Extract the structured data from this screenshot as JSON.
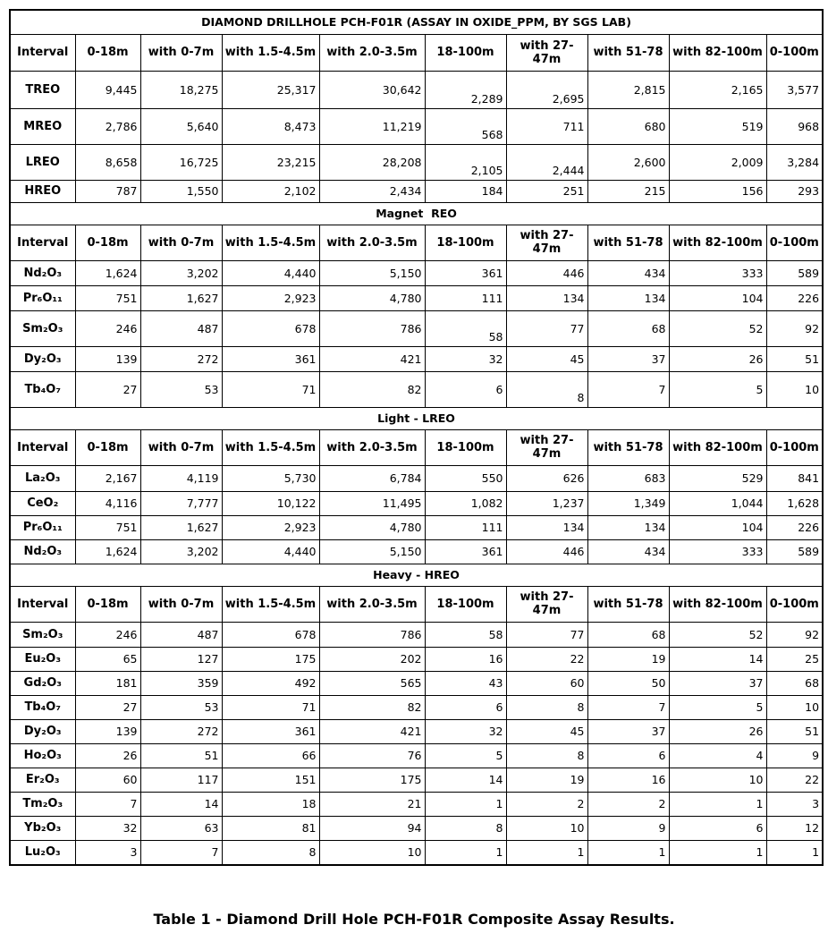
{
  "table": {
    "title": "DIAMOND DRILLHOLE PCH-F01R (ASSAY IN OXIDE_PPM, BY SGS LAB)",
    "blocks": [
      {
        "header": [
          "Interval",
          "0-18m",
          "with 0-7m",
          "with 1.5-4.5m",
          "with 2.0-3.5m",
          "18-100m",
          "with 27-47m",
          "with 51-78",
          "with 82-100m",
          "0-100m"
        ],
        "rows": [
          [
            "TREO",
            "9,445",
            "18,275",
            "25,317",
            "30,642",
            "2,289",
            "2,695",
            "2,815",
            "2,165",
            "3,577"
          ],
          [
            "MREO",
            "2,786",
            "5,640",
            "8,473",
            "11,219",
            "568",
            "711",
            "680",
            "519",
            "968"
          ],
          [
            "LREO",
            "8,658",
            "16,725",
            "23,215",
            "28,208",
            "2,105",
            "2,444",
            "2,600",
            "2,009",
            "3,284"
          ],
          [
            "HREO",
            "787",
            "1,550",
            "2,102",
            "2,434",
            "184",
            "251",
            "215",
            "156",
            "293"
          ]
        ]
      },
      {
        "section": "Magnet  REO",
        "header": [
          "Interval",
          "0-18m",
          "with 0-7m",
          "with 1.5-4.5m",
          "with 2.0-3.5m",
          "18-100m",
          "with 27-47m",
          "with 51-78",
          "with 82-100m",
          "0-100m"
        ],
        "rows": [
          [
            "Nd₂O₃",
            "1,624",
            "3,202",
            "4,440",
            "5,150",
            "361",
            "446",
            "434",
            "333",
            "589"
          ],
          [
            "Pr₆O₁₁",
            "751",
            "1,627",
            "2,923",
            "4,780",
            "111",
            "134",
            "134",
            "104",
            "226"
          ],
          [
            "Sm₂O₃",
            "246",
            "487",
            "678",
            "786",
            "58",
            "77",
            "68",
            "52",
            "92"
          ],
          [
            "Dy₂O₃",
            "139",
            "272",
            "361",
            "421",
            "32",
            "45",
            "37",
            "26",
            "51"
          ],
          [
            "Tb₄O₇",
            "27",
            "53",
            "71",
            "82",
            "6",
            "8",
            "7",
            "5",
            "10"
          ]
        ]
      },
      {
        "section": "Light - LREO",
        "header": [
          "Interval",
          "0-18m",
          "with 0-7m",
          "with 1.5-4.5m",
          "with 2.0-3.5m",
          "18-100m",
          "with 27-47m",
          "with 51-78",
          "with 82-100m",
          "0-100m"
        ],
        "rows": [
          [
            "La₂O₃",
            "2,167",
            "4,119",
            "5,730",
            "6,784",
            "550",
            "626",
            "683",
            "529",
            "841"
          ],
          [
            "CeO₂",
            "4,116",
            "7,777",
            "10,122",
            "11,495",
            "1,082",
            "1,237",
            "1,349",
            "1,044",
            "1,628"
          ],
          [
            "Pr₆O₁₁",
            "751",
            "1,627",
            "2,923",
            "4,780",
            "111",
            "134",
            "134",
            "104",
            "226"
          ],
          [
            "Nd₂O₃",
            "1,624",
            "3,202",
            "4,440",
            "5,150",
            "361",
            "446",
            "434",
            "333",
            "589"
          ]
        ]
      },
      {
        "section": "Heavy - HREO",
        "header": [
          "Interval",
          "0-18m",
          "with 0-7m",
          "with 1.5-4.5m",
          "with 2.0-3.5m",
          "18-100m",
          "with 27-47m",
          "with 51-78",
          "with 82-100m",
          "0-100m"
        ],
        "rows": [
          [
            "Sm₂O₃",
            "246",
            "487",
            "678",
            "786",
            "58",
            "77",
            "68",
            "52",
            "92"
          ],
          [
            "Eu₂O₃",
            "65",
            "127",
            "175",
            "202",
            "16",
            "22",
            "19",
            "14",
            "25"
          ],
          [
            "Gd₂O₃",
            "181",
            "359",
            "492",
            "565",
            "43",
            "60",
            "50",
            "37",
            "68"
          ],
          [
            "Tb₄O₇",
            "27",
            "53",
            "71",
            "82",
            "6",
            "8",
            "7",
            "5",
            "10"
          ],
          [
            "Dy₂O₃",
            "139",
            "272",
            "361",
            "421",
            "32",
            "45",
            "37",
            "26",
            "51"
          ],
          [
            "Ho₂O₃",
            "26",
            "51",
            "66",
            "76",
            "5",
            "8",
            "6",
            "4",
            "9"
          ],
          [
            "Er₂O₃",
            "60",
            "117",
            "151",
            "175",
            "14",
            "19",
            "16",
            "10",
            "22"
          ],
          [
            "Tm₂O₃",
            "7",
            "14",
            "18",
            "21",
            "1",
            "2",
            "2",
            "1",
            "3"
          ],
          [
            "Yb₂O₃",
            "32",
            "63",
            "81",
            "94",
            "8",
            "10",
            "9",
            "6",
            "12"
          ],
          [
            "Lu₂O₃",
            "3",
            "7",
            "8",
            "10",
            "1",
            "1",
            "1",
            "1",
            "1"
          ]
        ]
      }
    ],
    "caption": "Table 1 - Diamond Drill Hole PCH-F01R Composite Assay Results."
  }
}
